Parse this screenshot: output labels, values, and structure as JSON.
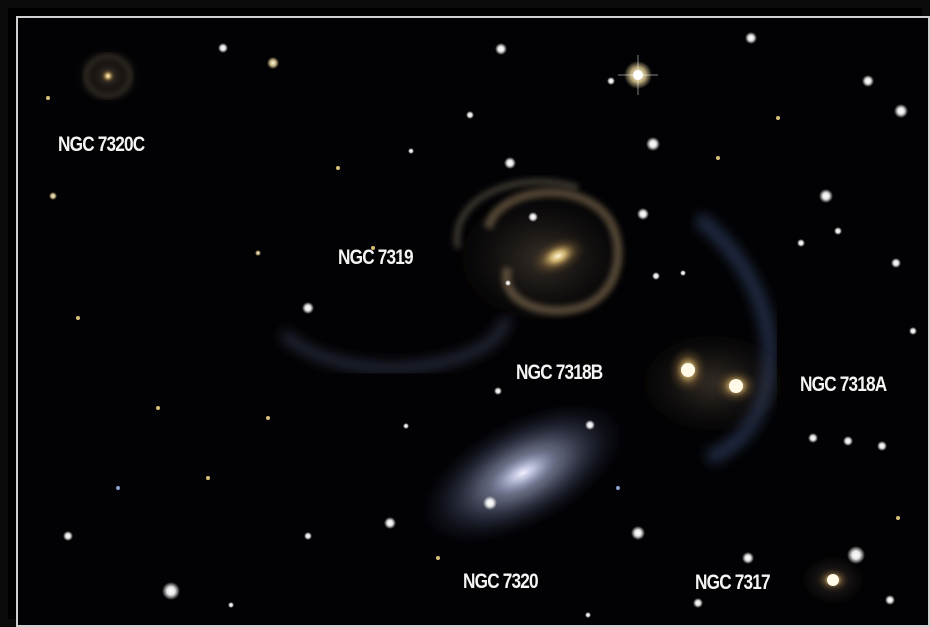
{
  "labels": {
    "ngc7320c": "NGC 7320C",
    "ngc7319": "NGC 7319",
    "ngc7318b": "NGC 7318B",
    "ngc7318a": "NGC 7318A",
    "ngc7320": "NGC 7320",
    "ngc7317": "NGC 7317"
  },
  "colors": {
    "sky": "#020204",
    "label": "#f4f4f4",
    "frame": "#cfcfcf"
  }
}
